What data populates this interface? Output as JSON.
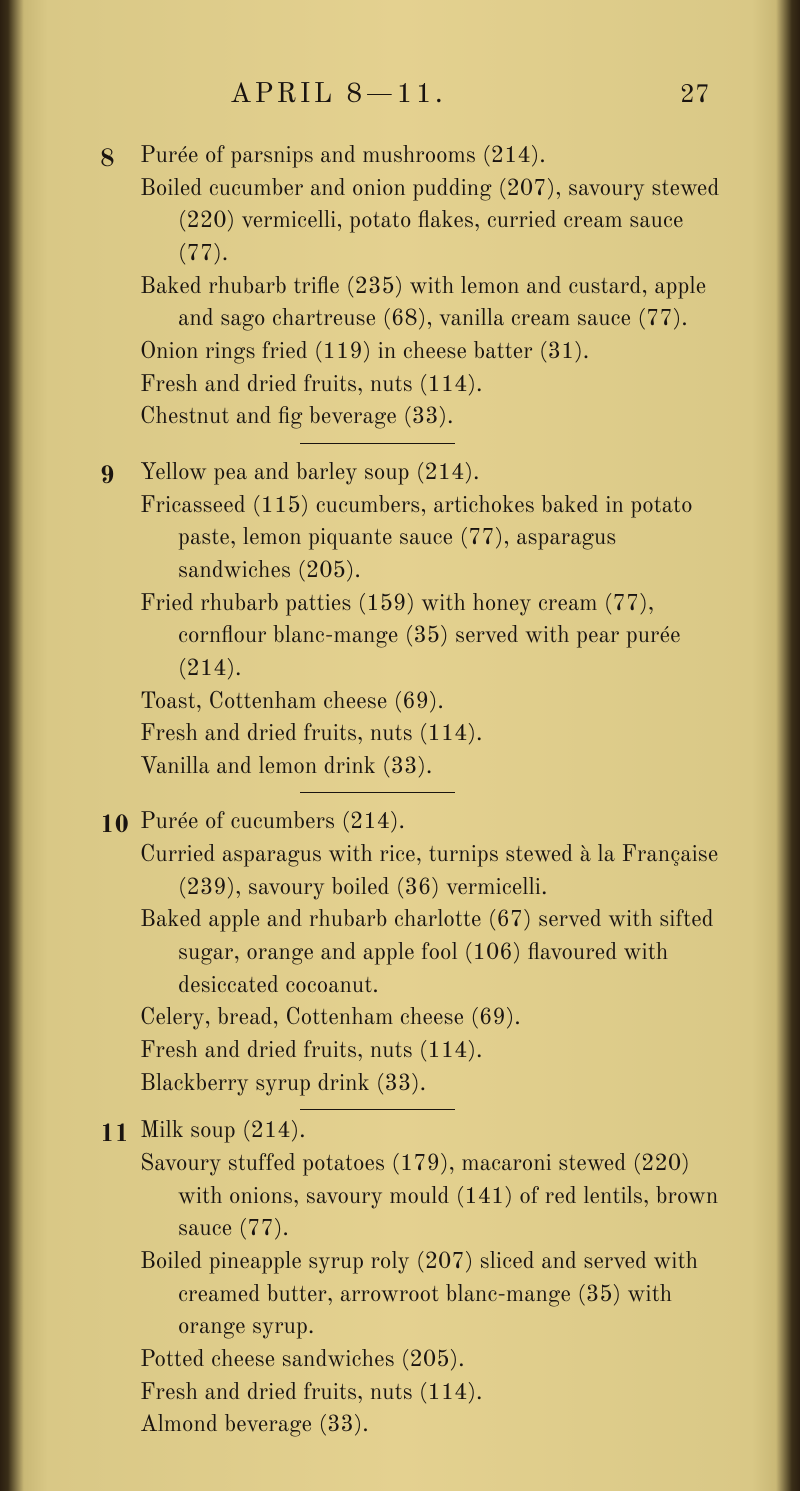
{
  "page": {
    "chapter_title": "APRIL 8—11.",
    "page_number": "27",
    "background_color": "#e4d190",
    "text_color": "#1a1410",
    "font_family": "Century Schoolbook"
  },
  "entries": [
    {
      "day": "8",
      "items": [
        "Purée of parsnips and mushrooms (214).",
        "Boiled cucumber and onion pudding (207), savoury stewed (220) vermicelli, potato flakes, curried cream sauce (77).",
        "Baked rhubarb trifle (235) with lemon and custard, apple and sago chartreuse (68), vanilla cream sauce (77).",
        "Onion rings fried (119) in cheese batter (31).",
        "Fresh and dried fruits, nuts (114).",
        "Chestnut and fig beverage (33)."
      ]
    },
    {
      "day": "9",
      "items": [
        "Yellow pea and barley soup (214).",
        "Fricasseed (115) cucumbers, artichokes baked in potato paste, lemon piquante sauce (77), asparagus sandwiches (205).",
        "Fried rhubarb patties (159) with honey cream (77), cornflour blanc-mange (35) served with pear purée (214).",
        "Toast, Cottenham cheese (69).",
        "Fresh and dried fruits, nuts (114).",
        "Vanilla and lemon drink (33)."
      ]
    },
    {
      "day": "10",
      "items": [
        "Purée of cucumbers (214).",
        "Curried asparagus with rice, turnips stewed à la Française (239), savoury boiled (36) vermicelli.",
        "Baked apple and rhubarb charlotte (67) served with sifted sugar, orange and apple fool (106) flavoured with desiccated cocoanut.",
        "Celery, bread, Cottenham cheese (69).",
        "Fresh and dried fruits, nuts (114).",
        "Blackberry syrup drink (33)."
      ]
    },
    {
      "day": "11",
      "items": [
        "Milk soup (214).",
        "Savoury stuffed potatoes (179), macaroni stewed (220) with onions, savoury mould (141) of red lentils, brown sauce (77).",
        "Boiled pineapple syrup roly (207) sliced and served with creamed butter, arrowroot blanc-mange (35) with orange syrup.",
        "Potted cheese sandwiches (205).",
        "Fresh and dried fruits, nuts (114).",
        "Almond beverage (33)."
      ]
    }
  ]
}
